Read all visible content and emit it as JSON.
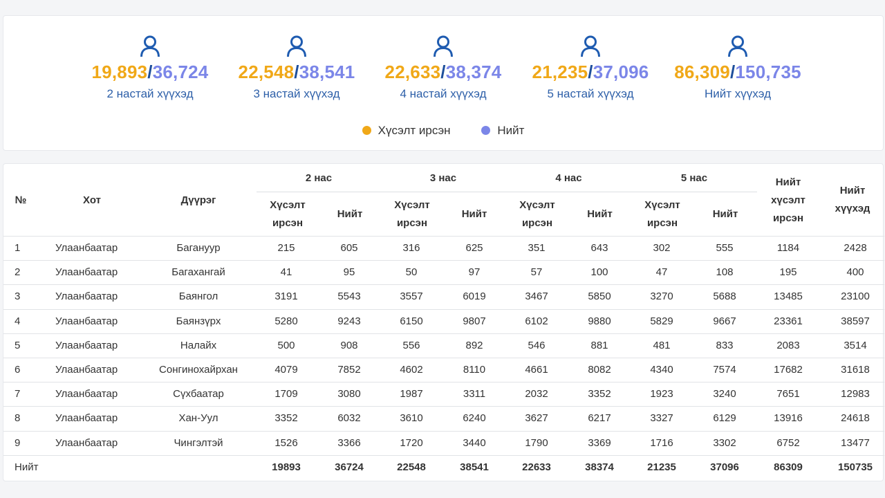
{
  "stats": [
    {
      "requested": "19,893",
      "total": "36,724",
      "label": "2 настай хүүхэд"
    },
    {
      "requested": "22,548",
      "total": "38,541",
      "label": "3 настай хүүхэд"
    },
    {
      "requested": "22,633",
      "total": "38,374",
      "label": "4 настай хүүхэд"
    },
    {
      "requested": "21,235",
      "total": "37,096",
      "label": "5 настай хүүхэд"
    },
    {
      "requested": "86,309",
      "total": "150,735",
      "label": "Нийт хүүхэд"
    }
  ],
  "separator": "/",
  "icon": "user-icon",
  "colors": {
    "requested": "#f0a818",
    "total": "#7b86e8",
    "label": "#2d5fa8",
    "icon": "#1e5bb0"
  },
  "legend": {
    "requested": "Хүсэлт ирсэн",
    "total": "Нийт"
  },
  "table": {
    "headers": {
      "no": "№",
      "city": "Хот",
      "district": "Дүүрэг",
      "age_groups": [
        "2 нас",
        "3 нас",
        "4 нас",
        "5 нас"
      ],
      "requested_line1": "Хүсэлт",
      "requested_line2": "ирсэн",
      "total": "Нийт",
      "total_requested_line1": "Нийт",
      "total_requested_line2": "хүсэлт",
      "total_requested_line3": "ирсэн",
      "total_children_line1": "Нийт",
      "total_children_line2": "хүүхэд"
    },
    "rows": [
      {
        "no": "1",
        "city": "Улаанбаатар",
        "district": "Багануур",
        "v": [
          "215",
          "605",
          "316",
          "625",
          "351",
          "643",
          "302",
          "555",
          "1184",
          "2428"
        ]
      },
      {
        "no": "2",
        "city": "Улаанбаатар",
        "district": "Багахангай",
        "v": [
          "41",
          "95",
          "50",
          "97",
          "57",
          "100",
          "47",
          "108",
          "195",
          "400"
        ]
      },
      {
        "no": "3",
        "city": "Улаанбаатар",
        "district": "Баянгол",
        "v": [
          "3191",
          "5543",
          "3557",
          "6019",
          "3467",
          "5850",
          "3270",
          "5688",
          "13485",
          "23100"
        ]
      },
      {
        "no": "4",
        "city": "Улаанбаатар",
        "district": "Баянзүрх",
        "v": [
          "5280",
          "9243",
          "6150",
          "9807",
          "6102",
          "9880",
          "5829",
          "9667",
          "23361",
          "38597"
        ]
      },
      {
        "no": "5",
        "city": "Улаанбаатар",
        "district": "Налайх",
        "v": [
          "500",
          "908",
          "556",
          "892",
          "546",
          "881",
          "481",
          "833",
          "2083",
          "3514"
        ]
      },
      {
        "no": "6",
        "city": "Улаанбаатар",
        "district": "Сонгинохайрхан",
        "v": [
          "4079",
          "7852",
          "4602",
          "8110",
          "4661",
          "8082",
          "4340",
          "7574",
          "17682",
          "31618"
        ]
      },
      {
        "no": "7",
        "city": "Улаанбаатар",
        "district": "Сүхбаатар",
        "v": [
          "1709",
          "3080",
          "1987",
          "3311",
          "2032",
          "3352",
          "1923",
          "3240",
          "7651",
          "12983"
        ]
      },
      {
        "no": "8",
        "city": "Улаанбаатар",
        "district": "Хан-Уул",
        "v": [
          "3352",
          "6032",
          "3610",
          "6240",
          "3627",
          "6217",
          "3327",
          "6129",
          "13916",
          "24618"
        ]
      },
      {
        "no": "9",
        "city": "Улаанбаатар",
        "district": "Чингэлтэй",
        "v": [
          "1526",
          "3366",
          "1720",
          "3440",
          "1790",
          "3369",
          "1716",
          "3302",
          "6752",
          "13477"
        ]
      }
    ],
    "total_row": {
      "label": "Нийт",
      "v": [
        "19893",
        "36724",
        "22548",
        "38541",
        "22633",
        "38374",
        "21235",
        "37096",
        "86309",
        "150735"
      ]
    }
  }
}
